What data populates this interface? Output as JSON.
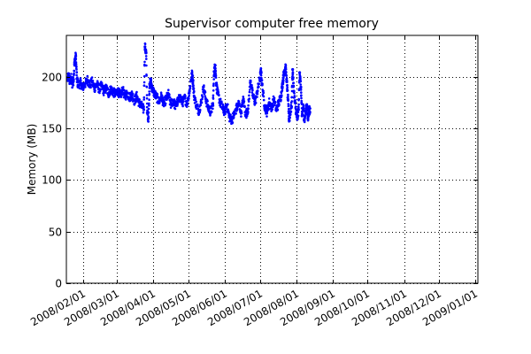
{
  "chart_data": {
    "type": "scatter",
    "title": "Supervisor computer free memory",
    "xlabel": "",
    "ylabel": "Memory (MB)",
    "xlim": [
      "2008-01-18",
      "2009-01-03"
    ],
    "ylim": [
      0,
      240
    ],
    "grid": true,
    "x_ticks": [
      "2008/02/01",
      "2008/03/01",
      "2008/04/01",
      "2008/05/01",
      "2008/06/01",
      "2008/07/01",
      "2008/08/01",
      "2008/09/01",
      "2008/10/01",
      "2008/11/01",
      "2008/12/01",
      "2009/01/01"
    ],
    "y_ticks": [
      0,
      50,
      100,
      150,
      200
    ],
    "marker_color": "#0000ff",
    "series": [
      {
        "name": "",
        "points": [
          [
            "2008-01-19",
            197
          ],
          [
            "2008-01-20",
            201
          ],
          [
            "2008-01-21",
            195
          ],
          [
            "2008-01-22",
            199
          ],
          [
            "2008-01-23",
            193
          ],
          [
            "2008-01-24",
            196
          ],
          [
            "2008-01-25",
            214
          ],
          [
            "2008-01-26",
            220
          ],
          [
            "2008-01-27",
            198
          ],
          [
            "2008-01-28",
            192
          ],
          [
            "2008-01-30",
            194
          ],
          [
            "2008-02-01",
            190
          ],
          [
            "2008-02-03",
            193
          ],
          [
            "2008-02-05",
            197
          ],
          [
            "2008-02-07",
            192
          ],
          [
            "2008-02-09",
            195
          ],
          [
            "2008-02-11",
            189
          ],
          [
            "2008-02-13",
            193
          ],
          [
            "2008-02-15",
            188
          ],
          [
            "2008-02-17",
            191
          ],
          [
            "2008-02-19",
            186
          ],
          [
            "2008-02-21",
            189
          ],
          [
            "2008-02-23",
            184
          ],
          [
            "2008-02-25",
            188
          ],
          [
            "2008-02-27",
            185
          ],
          [
            "2008-02-29",
            183
          ],
          [
            "2008-03-02",
            186
          ],
          [
            "2008-03-04",
            182
          ],
          [
            "2008-03-06",
            187
          ],
          [
            "2008-03-08",
            181
          ],
          [
            "2008-03-10",
            184
          ],
          [
            "2008-03-12",
            180
          ],
          [
            "2008-03-14",
            183
          ],
          [
            "2008-03-16",
            177
          ],
          [
            "2008-03-18",
            181
          ],
          [
            "2008-03-20",
            175
          ],
          [
            "2008-03-22",
            172
          ],
          [
            "2008-03-24",
            168
          ],
          [
            "2008-03-25",
            229
          ],
          [
            "2008-03-26",
            223
          ],
          [
            "2008-03-27",
            165
          ],
          [
            "2008-03-28",
            160
          ],
          [
            "2008-03-29",
            193
          ],
          [
            "2008-03-30",
            196
          ],
          [
            "2008-03-31",
            189
          ],
          [
            "2008-04-02",
            184
          ],
          [
            "2008-04-04",
            180
          ],
          [
            "2008-04-06",
            176
          ],
          [
            "2008-04-08",
            181
          ],
          [
            "2008-04-10",
            174
          ],
          [
            "2008-04-12",
            178
          ],
          [
            "2008-04-14",
            183
          ],
          [
            "2008-04-16",
            173
          ],
          [
            "2008-04-18",
            177
          ],
          [
            "2008-04-20",
            172
          ],
          [
            "2008-04-22",
            176
          ],
          [
            "2008-04-24",
            180
          ],
          [
            "2008-04-26",
            175
          ],
          [
            "2008-04-28",
            179
          ],
          [
            "2008-04-30",
            174
          ],
          [
            "2008-05-02",
            186
          ],
          [
            "2008-05-04",
            203
          ],
          [
            "2008-05-05",
            196
          ],
          [
            "2008-05-06",
            181
          ],
          [
            "2008-05-08",
            172
          ],
          [
            "2008-05-10",
            167
          ],
          [
            "2008-05-12",
            175
          ],
          [
            "2008-05-14",
            190
          ],
          [
            "2008-05-16",
            178
          ],
          [
            "2008-05-18",
            170
          ],
          [
            "2008-05-20",
            166
          ],
          [
            "2008-05-22",
            172
          ],
          [
            "2008-05-23",
            205
          ],
          [
            "2008-05-24",
            211
          ],
          [
            "2008-05-25",
            192
          ],
          [
            "2008-05-26",
            184
          ],
          [
            "2008-05-28",
            176
          ],
          [
            "2008-05-30",
            170
          ],
          [
            "2008-06-01",
            166
          ],
          [
            "2008-06-03",
            173
          ],
          [
            "2008-06-05",
            161
          ],
          [
            "2008-06-07",
            158
          ],
          [
            "2008-06-09",
            163
          ],
          [
            "2008-06-11",
            169
          ],
          [
            "2008-06-13",
            174
          ],
          [
            "2008-06-15",
            166
          ],
          [
            "2008-06-17",
            178
          ],
          [
            "2008-06-19",
            163
          ],
          [
            "2008-06-21",
            169
          ],
          [
            "2008-06-23",
            196
          ],
          [
            "2008-06-25",
            182
          ],
          [
            "2008-06-27",
            175
          ],
          [
            "2008-06-29",
            186
          ],
          [
            "2008-07-01",
            198
          ],
          [
            "2008-07-02",
            205
          ],
          [
            "2008-07-03",
            192
          ],
          [
            "2008-07-05",
            172
          ],
          [
            "2008-07-07",
            166
          ],
          [
            "2008-07-09",
            175
          ],
          [
            "2008-07-11",
            170
          ],
          [
            "2008-07-13",
            178
          ],
          [
            "2008-07-15",
            168
          ],
          [
            "2008-07-17",
            174
          ],
          [
            "2008-07-19",
            181
          ],
          [
            "2008-07-20",
            190
          ],
          [
            "2008-07-21",
            199
          ],
          [
            "2008-07-22",
            206
          ],
          [
            "2008-07-23",
            209
          ],
          [
            "2008-07-24",
            195
          ],
          [
            "2008-07-25",
            178
          ],
          [
            "2008-07-26",
            158
          ],
          [
            "2008-07-27",
            166
          ],
          [
            "2008-07-28",
            171
          ],
          [
            "2008-07-29",
            207
          ],
          [
            "2008-07-30",
            186
          ],
          [
            "2008-07-31",
            175
          ],
          [
            "2008-08-01",
            165
          ],
          [
            "2008-08-02",
            159
          ],
          [
            "2008-08-03",
            168
          ],
          [
            "2008-08-04",
            204
          ],
          [
            "2008-08-05",
            190
          ],
          [
            "2008-08-06",
            162
          ],
          [
            "2008-08-07",
            170
          ],
          [
            "2008-08-08",
            158
          ],
          [
            "2008-08-09",
            166
          ],
          [
            "2008-08-10",
            173
          ],
          [
            "2008-08-11",
            160
          ],
          [
            "2008-08-12",
            167
          ]
        ]
      }
    ]
  }
}
